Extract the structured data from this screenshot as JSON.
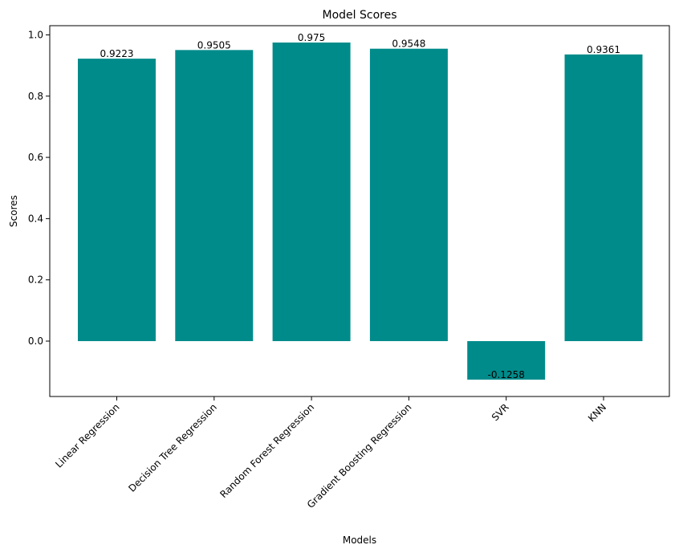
{
  "chart_data": {
    "type": "bar",
    "title": "Model Scores",
    "xlabel": "Models",
    "ylabel": "Scores",
    "categories": [
      "Linear Regression",
      "Decision Tree Regression",
      "Random Forest Regression",
      "Gradient Boosting Regression",
      "SVR",
      "KNN"
    ],
    "values": [
      0.9223,
      0.9505,
      0.975,
      0.9548,
      -0.1258,
      0.9361
    ],
    "value_labels": [
      "0.9223",
      "0.9505",
      "0.975",
      "0.9548",
      "-0.1258",
      "0.9361"
    ],
    "ylim": [
      -0.1808,
      1.03
    ],
    "yticks": [
      0.0,
      0.2,
      0.4,
      0.6,
      0.8,
      1.0
    ],
    "ytick_labels": [
      "0.0",
      "0.2",
      "0.4",
      "0.6",
      "0.8",
      "1.0"
    ],
    "xtick_rotation": 45,
    "grid": false,
    "legend": "none",
    "bar_color": "#008b8b"
  }
}
